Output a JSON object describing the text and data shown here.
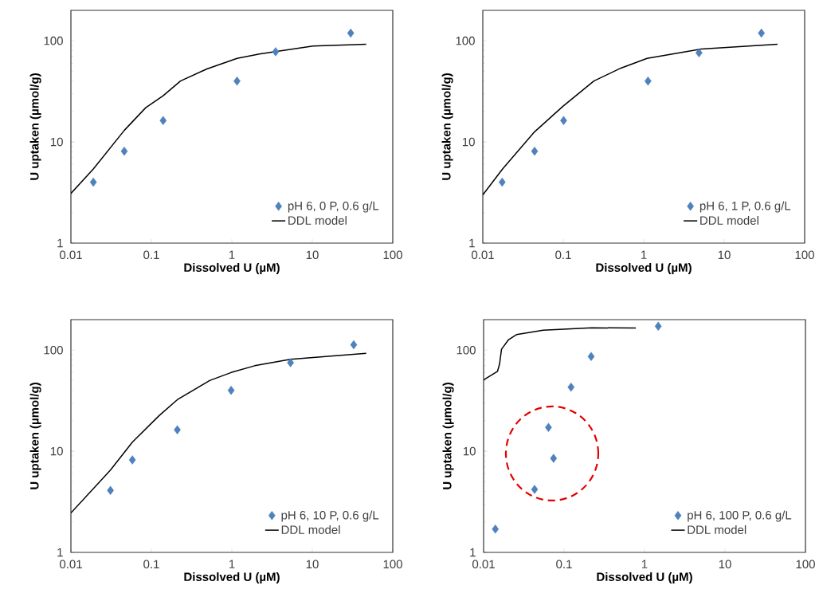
{
  "chart_data": [
    {
      "type": "scatter",
      "xlabel": "Dissolved U (µM)",
      "ylabel": "U uptaken (µmol/g)",
      "log": "xy",
      "xlim": [
        0.01,
        100
      ],
      "ylim": [
        1,
        200
      ],
      "xticks": [
        0.01,
        0.1,
        1,
        10,
        100
      ],
      "yticks": [
        1,
        10,
        100
      ],
      "legend": "bottom right",
      "series": [
        {
          "name": "pH 6, 0 P, 0.6 g/L",
          "marker": "diamond",
          "color": "#4f81bd",
          "x": [
            0.019,
            0.046,
            0.14,
            1.16,
            3.5,
            30
          ],
          "values": [
            4.0,
            8.1,
            16.3,
            40,
            78,
            119
          ]
        },
        {
          "name": "DDL model",
          "type": "line",
          "marker": "none",
          "color": "#000000",
          "x": [
            0.01,
            0.019,
            0.046,
            0.085,
            0.14,
            0.23,
            0.49,
            1.16,
            2.2,
            10.2,
            46.7
          ],
          "values": [
            3.1,
            5.4,
            13,
            21.8,
            28.6,
            40,
            52.7,
            67,
            74,
            88.6,
            92.5
          ]
        }
      ]
    },
    {
      "type": "scatter",
      "xlabel": "Dissolved U (µM)",
      "ylabel": "U uptaken (µmol/g)",
      "log": "xy",
      "xlim": [
        0.01,
        100
      ],
      "ylim": [
        1,
        200
      ],
      "xticks": [
        0.01,
        0.1,
        1,
        10,
        100
      ],
      "yticks": [
        1,
        10,
        100
      ],
      "legend": "bottom right",
      "series": [
        {
          "name": "pH 6, 1 P, 0.6 g/L",
          "marker": "diamond",
          "color": "#4f81bd",
          "x": [
            0.0174,
            0.044,
            0.101,
            1.13,
            4.86,
            29
          ],
          "values": [
            4.0,
            8.1,
            16.3,
            40,
            76,
            119
          ]
        },
        {
          "name": "DDL model",
          "type": "line",
          "marker": "none",
          "color": "#000000",
          "x": [
            0.01,
            0.0176,
            0.044,
            0.099,
            0.24,
            0.52,
            1.1,
            5.2,
            46
          ],
          "values": [
            3.0,
            5.4,
            12.6,
            22.5,
            40,
            53.7,
            67,
            83,
            92.5
          ]
        }
      ]
    },
    {
      "type": "scatter",
      "xlabel": "Dissolved U (µM)",
      "ylabel": "U uptaken (µmol/g)",
      "log": "xy",
      "xlim": [
        0.01,
        100
      ],
      "ylim": [
        1,
        200
      ],
      "xticks": [
        0.01,
        0.1,
        1,
        10,
        100
      ],
      "yticks": [
        1,
        10,
        100
      ],
      "legend": "bottom right",
      "series": [
        {
          "name": "pH 6, 10 P, 0.6 g/L",
          "marker": "diamond",
          "color": "#4f81bd",
          "x": [
            0.031,
            0.058,
            0.21,
            0.98,
            5.36,
            32.7
          ],
          "values": [
            4.1,
            8.2,
            16.3,
            40,
            75,
            113
          ]
        },
        {
          "name": "DDL model",
          "type": "line",
          "marker": "none",
          "color": "#000000",
          "x": [
            0.01,
            0.031,
            0.058,
            0.125,
            0.21,
            0.53,
            0.98,
            1.92,
            5.36,
            46.7
          ],
          "values": [
            2.45,
            6.5,
            12.3,
            22.5,
            32.3,
            50,
            60,
            70,
            81,
            93
          ]
        }
      ]
    },
    {
      "type": "scatter",
      "xlabel": "Dissolved U (µM)",
      "ylabel": "U uptaken (µmol/g)",
      "log": "xy",
      "xlim": [
        0.01,
        100
      ],
      "ylim": [
        1,
        200
      ],
      "xticks": [
        0.01,
        0.1,
        1,
        10,
        100
      ],
      "yticks": [
        1,
        10,
        100
      ],
      "legend": "bottom right",
      "series": [
        {
          "name": "pH 6, 100 P, 0.6 g/L",
          "marker": "diamond",
          "color": "#4f81bd",
          "x": [
            0.014,
            0.043,
            0.064,
            0.074,
            0.122,
            0.217,
            1.48
          ],
          "values": [
            1.7,
            4.2,
            17.2,
            8.5,
            43,
            86.5,
            172
          ]
        },
        {
          "name": "DDL model",
          "type": "line",
          "marker": "none",
          "color": "#000000",
          "x": [
            0.01,
            0.0149,
            0.0158,
            0.0167,
            0.0203,
            0.0256,
            0.055,
            0.22,
            0.78
          ],
          "values": [
            50.8,
            61.7,
            73,
            102,
            126,
            142,
            157,
            166,
            165
          ]
        }
      ]
    }
  ]
}
